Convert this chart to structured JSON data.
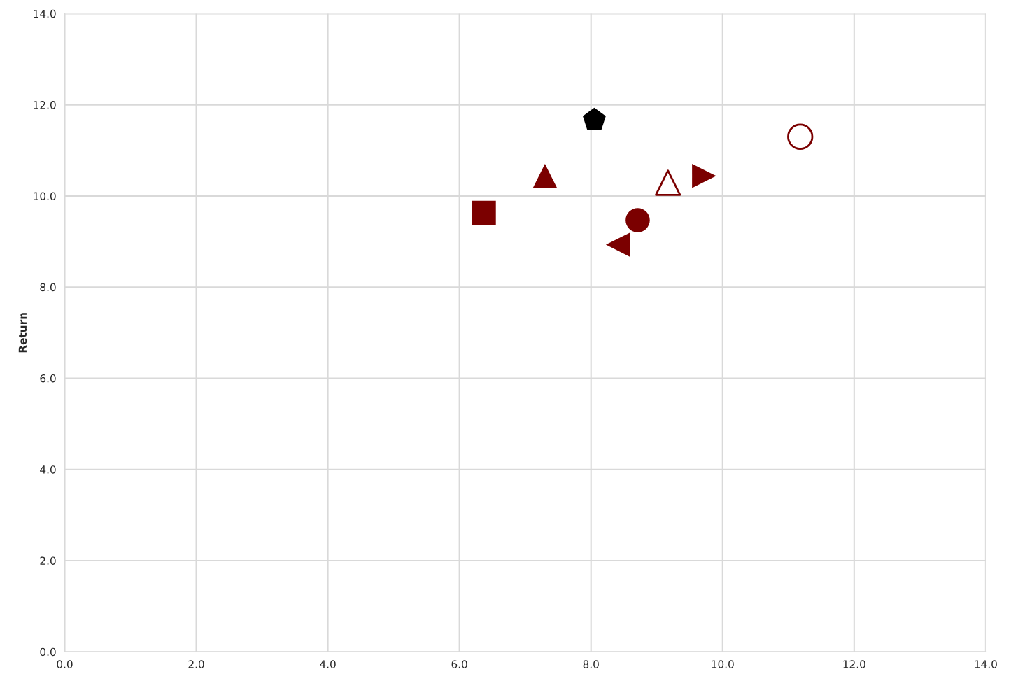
{
  "chart_data": {
    "type": "scatter",
    "ylabel": "Return",
    "xlim": [
      0,
      14
    ],
    "ylim": [
      0,
      14
    ],
    "xticks": [
      {
        "value": 0,
        "label": "0.0"
      },
      {
        "value": 2,
        "label": "2.0"
      },
      {
        "value": 4,
        "label": "4.0"
      },
      {
        "value": 6,
        "label": "6.0"
      },
      {
        "value": 8,
        "label": "8.0"
      },
      {
        "value": 10,
        "label": "10.0"
      },
      {
        "value": 12,
        "label": "12.0"
      },
      {
        "value": 14,
        "label": "14.0"
      }
    ],
    "yticks": [
      {
        "value": 0,
        "label": "0.0"
      },
      {
        "value": 2,
        "label": "2.0"
      },
      {
        "value": 4,
        "label": "4.0"
      },
      {
        "value": 6,
        "label": "6.0"
      },
      {
        "value": 8,
        "label": "8.0"
      },
      {
        "value": 10,
        "label": "10.0"
      },
      {
        "value": 12,
        "label": "12.0"
      },
      {
        "value": 14,
        "label": "14.0"
      }
    ],
    "grid": true,
    "legend": false,
    "series": [
      {
        "color": "#7b0000",
        "marker": "square",
        "x": [
          6.37
        ],
        "values": [
          9.63
        ]
      },
      {
        "color": "#7b0000",
        "marker": "triangle",
        "x": [
          7.3
        ],
        "values": [
          10.44
        ]
      },
      {
        "color": "#000000",
        "x": [
          8.05
        ],
        "values": [
          11.67
        ]
      },
      {
        "color": "#7b0000",
        "marker": "circle",
        "x": [
          8.71
        ],
        "values": [
          9.47
        ]
      },
      {
        "color": "#7b0000",
        "marker": "triangle_left",
        "x": [
          8.41
        ],
        "values": [
          8.93
        ]
      },
      {
        "color": "#7b0000",
        "marker": "triangle_open",
        "x": [
          9.17
        ],
        "values": [
          10.29
        ]
      },
      {
        "color": "#7b0000",
        "marker": "triangle_right",
        "x": [
          9.72
        ],
        "values": [
          10.44
        ]
      },
      {
        "color": "#7b0000",
        "marker": "circle_open",
        "x": [
          11.18
        ],
        "values": [
          11.3
        ]
      }
    ]
  }
}
